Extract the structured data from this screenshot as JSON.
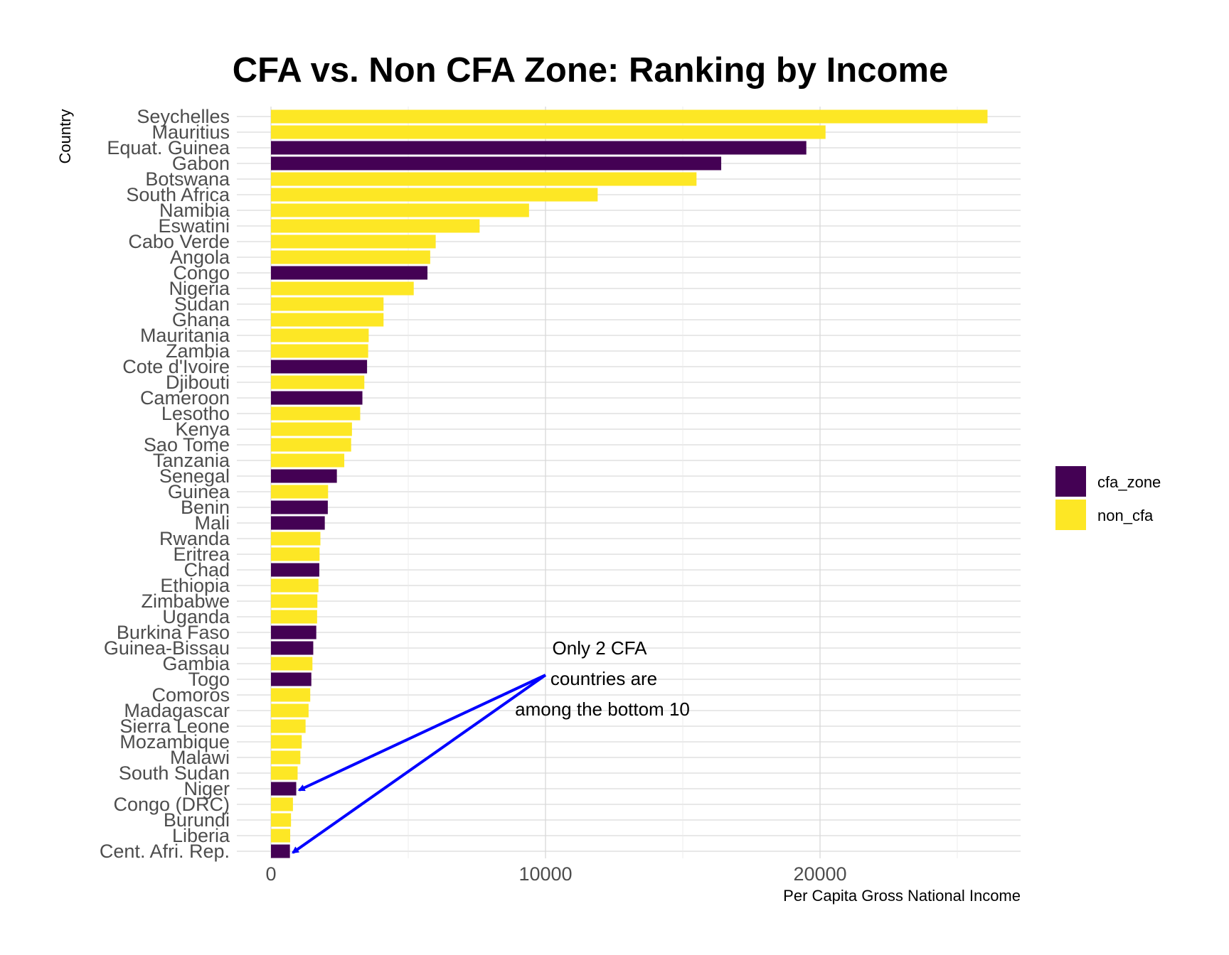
{
  "chart_data": {
    "type": "bar",
    "orientation": "horizontal",
    "title": "CFA vs. Non CFA Zone: Ranking by Income",
    "xlabel": "Per Capita Gross National Income",
    "ylabel": "Country",
    "xlim": [
      0,
      27500
    ],
    "xticks": [
      0,
      10000,
      20000
    ],
    "grid": true,
    "legend_position": "right",
    "colors": {
      "cfa_zone": "#440154",
      "non_cfa": "#FDE725"
    },
    "legend": [
      {
        "key": "cfa_zone",
        "label": "cfa_zone"
      },
      {
        "key": "non_cfa",
        "label": "non_cfa"
      }
    ],
    "bars": [
      {
        "country": "Seychelles",
        "value": 26100,
        "group": "non_cfa"
      },
      {
        "country": "Mauritius",
        "value": 20200,
        "group": "non_cfa"
      },
      {
        "country": "Equat. Guinea",
        "value": 19500,
        "group": "cfa_zone"
      },
      {
        "country": "Gabon",
        "value": 16400,
        "group": "cfa_zone"
      },
      {
        "country": "Botswana",
        "value": 15500,
        "group": "non_cfa"
      },
      {
        "country": "South Africa",
        "value": 11900,
        "group": "non_cfa"
      },
      {
        "country": "Namibia",
        "value": 9400,
        "group": "non_cfa"
      },
      {
        "country": "Eswatini",
        "value": 7600,
        "group": "non_cfa"
      },
      {
        "country": "Cabo Verde",
        "value": 6000,
        "group": "non_cfa"
      },
      {
        "country": "Angola",
        "value": 5800,
        "group": "non_cfa"
      },
      {
        "country": "Congo",
        "value": 5700,
        "group": "cfa_zone"
      },
      {
        "country": "Nigeria",
        "value": 5200,
        "group": "non_cfa"
      },
      {
        "country": "Sudan",
        "value": 4100,
        "group": "non_cfa"
      },
      {
        "country": "Ghana",
        "value": 4100,
        "group": "non_cfa"
      },
      {
        "country": "Mauritania",
        "value": 3560,
        "group": "non_cfa"
      },
      {
        "country": "Zambia",
        "value": 3540,
        "group": "non_cfa"
      },
      {
        "country": "Cote d'Ivoire",
        "value": 3500,
        "group": "cfa_zone"
      },
      {
        "country": "Djibouti",
        "value": 3400,
        "group": "non_cfa"
      },
      {
        "country": "Cameroon",
        "value": 3330,
        "group": "cfa_zone"
      },
      {
        "country": "Lesotho",
        "value": 3250,
        "group": "non_cfa"
      },
      {
        "country": "Kenya",
        "value": 2950,
        "group": "non_cfa"
      },
      {
        "country": "Sao Tome",
        "value": 2920,
        "group": "non_cfa"
      },
      {
        "country": "Tanzania",
        "value": 2670,
        "group": "non_cfa"
      },
      {
        "country": "Senegal",
        "value": 2400,
        "group": "cfa_zone"
      },
      {
        "country": "Guinea",
        "value": 2080,
        "group": "non_cfa"
      },
      {
        "country": "Benin",
        "value": 2070,
        "group": "cfa_zone"
      },
      {
        "country": "Mali",
        "value": 1960,
        "group": "cfa_zone"
      },
      {
        "country": "Rwanda",
        "value": 1800,
        "group": "non_cfa"
      },
      {
        "country": "Eritrea",
        "value": 1770,
        "group": "non_cfa"
      },
      {
        "country": "Chad",
        "value": 1760,
        "group": "cfa_zone"
      },
      {
        "country": "Ethiopia",
        "value": 1730,
        "group": "non_cfa"
      },
      {
        "country": "Zimbabwe",
        "value": 1690,
        "group": "non_cfa"
      },
      {
        "country": "Uganda",
        "value": 1680,
        "group": "non_cfa"
      },
      {
        "country": "Burkina Faso",
        "value": 1650,
        "group": "cfa_zone"
      },
      {
        "country": "Guinea-Bissau",
        "value": 1540,
        "group": "cfa_zone"
      },
      {
        "country": "Gambia",
        "value": 1510,
        "group": "non_cfa"
      },
      {
        "country": "Togo",
        "value": 1470,
        "group": "cfa_zone"
      },
      {
        "country": "Comoros",
        "value": 1430,
        "group": "non_cfa"
      },
      {
        "country": "Madagascar",
        "value": 1370,
        "group": "non_cfa"
      },
      {
        "country": "Sierra Leone",
        "value": 1260,
        "group": "non_cfa"
      },
      {
        "country": "Mozambique",
        "value": 1120,
        "group": "non_cfa"
      },
      {
        "country": "Malawi",
        "value": 1070,
        "group": "non_cfa"
      },
      {
        "country": "South Sudan",
        "value": 970,
        "group": "non_cfa"
      },
      {
        "country": "Niger",
        "value": 920,
        "group": "cfa_zone"
      },
      {
        "country": "Congo (DRC)",
        "value": 800,
        "group": "non_cfa"
      },
      {
        "country": "Burundi",
        "value": 730,
        "group": "non_cfa"
      },
      {
        "country": "Liberia",
        "value": 700,
        "group": "non_cfa"
      },
      {
        "country": "Cent. Afri. Rep.",
        "value": 690,
        "group": "cfa_zone"
      }
    ],
    "annotation": {
      "lines": [
        "Only 2 CFA",
        "countries are",
        "among the bottom 10"
      ],
      "anchor_x": 10000,
      "targets": [
        "Niger",
        "Cent. Afri. Rep."
      ],
      "arrow_color": "#0000FF"
    }
  }
}
